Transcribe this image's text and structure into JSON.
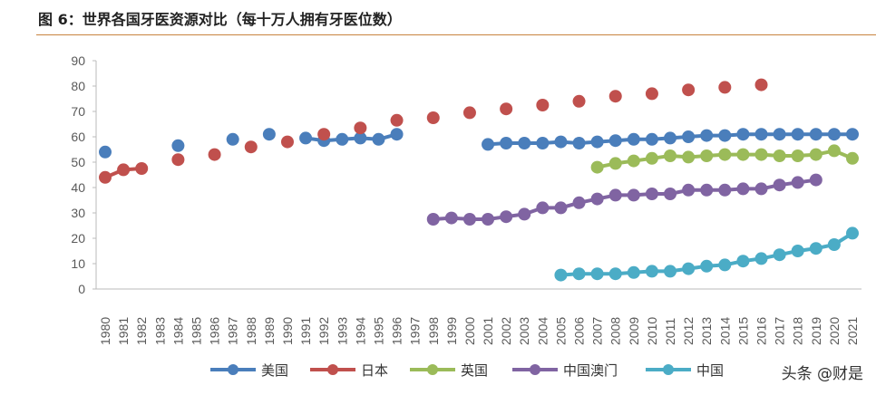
{
  "title": "图 6：世界各国牙医资源对比（每十万人拥有牙医位数）",
  "watermark": "头条 @财是",
  "chart_data": {
    "type": "line",
    "ylim": [
      0,
      90
    ],
    "yticks": [
      0,
      10,
      20,
      30,
      40,
      50,
      60,
      70,
      80,
      90
    ],
    "grid": false,
    "legend": "bottom",
    "categories": [
      "1980",
      "1981",
      "1982",
      "1983",
      "1984",
      "1985",
      "1986",
      "1987",
      "1988",
      "1989",
      "1990",
      "1991",
      "1992",
      "1993",
      "1994",
      "1995",
      "1996",
      "1997",
      "1998",
      "1999",
      "2000",
      "2001",
      "2002",
      "2003",
      "2004",
      "2005",
      "2006",
      "2007",
      "2008",
      "2009",
      "2010",
      "2011",
      "2012",
      "2013",
      "2014",
      "2015",
      "2016",
      "2017",
      "2018",
      "2019",
      "2020",
      "2021"
    ],
    "series": [
      {
        "name": "美国",
        "color": "#4a7ebb",
        "values": [
          54,
          null,
          null,
          null,
          56.5,
          null,
          null,
          59,
          null,
          61,
          null,
          59.5,
          58.5,
          59,
          59.5,
          59,
          61,
          null,
          null,
          null,
          null,
          57,
          57.5,
          57.5,
          57.5,
          58,
          57.5,
          58,
          58.5,
          59,
          59,
          59.5,
          60,
          60.5,
          60.5,
          61,
          61,
          61,
          61,
          61,
          61,
          61
        ]
      },
      {
        "name": "日本",
        "color": "#c0504d",
        "values": [
          44,
          47,
          47.5,
          null,
          51,
          null,
          53,
          null,
          56,
          null,
          58,
          null,
          61,
          null,
          63.5,
          null,
          66.5,
          null,
          67.5,
          null,
          69.5,
          null,
          71,
          null,
          72.5,
          null,
          74,
          null,
          76,
          null,
          77,
          null,
          78.5,
          null,
          79.5,
          null,
          80.5,
          null,
          null,
          null,
          null,
          null
        ]
      },
      {
        "name": "英国",
        "color": "#9bbb59",
        "values": [
          null,
          null,
          null,
          null,
          null,
          null,
          null,
          null,
          null,
          null,
          null,
          null,
          null,
          null,
          null,
          null,
          null,
          null,
          null,
          null,
          null,
          null,
          null,
          null,
          null,
          null,
          null,
          48,
          49.5,
          50.5,
          51.5,
          52.5,
          52,
          52.5,
          53,
          53,
          53,
          52.5,
          52.5,
          53,
          54.5,
          51.5
        ]
      },
      {
        "name": "中国澳门",
        "color": "#8064a2",
        "values": [
          null,
          null,
          null,
          null,
          null,
          null,
          null,
          null,
          null,
          null,
          null,
          null,
          null,
          null,
          null,
          null,
          null,
          null,
          27.5,
          28,
          27.5,
          27.5,
          28.5,
          29.5,
          32,
          32,
          34,
          35.5,
          37,
          37,
          37.5,
          37.5,
          39,
          39,
          39,
          39.5,
          39.5,
          41,
          42,
          43,
          null,
          null
        ]
      },
      {
        "name": "中国",
        "color": "#4bacc6",
        "values": [
          null,
          null,
          null,
          null,
          null,
          null,
          null,
          null,
          null,
          null,
          null,
          null,
          null,
          null,
          null,
          null,
          null,
          null,
          null,
          null,
          null,
          null,
          null,
          null,
          null,
          5.5,
          6,
          6,
          6,
          6.5,
          7,
          7,
          8,
          9,
          9.5,
          11,
          12,
          13.5,
          15,
          16,
          17.5,
          22
        ]
      }
    ]
  }
}
